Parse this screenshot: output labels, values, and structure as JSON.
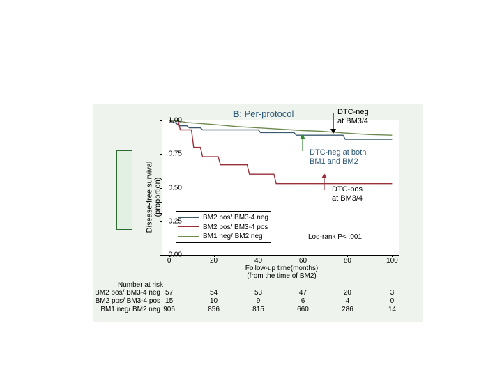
{
  "panel": {
    "background": "#eef4ed",
    "plot_background": "#ffffff"
  },
  "title": {
    "prefix": "B",
    "text": ": Per-protocol",
    "color": "#2c5878"
  },
  "yaxis": {
    "label_line1": "Disease-free survival",
    "label_line2": "(proportion)",
    "ticks": [
      {
        "v": 0.0,
        "label": "0.00"
      },
      {
        "v": 0.25,
        "label": "0.25"
      },
      {
        "v": 0.5,
        "label": "0.50"
      },
      {
        "v": 0.75,
        "label": "0.75"
      },
      {
        "v": 1.0,
        "label": "1.00"
      }
    ],
    "min": 0.0,
    "max": 1.0
  },
  "xaxis": {
    "label_line1": "Follow-up time(months)",
    "label_line2": "(from the time of BM2)",
    "ticks": [
      0,
      20,
      40,
      60,
      80,
      100
    ],
    "min": -3,
    "max": 103
  },
  "series": [
    {
      "name": "BM2 pos/ BM3-4 neg",
      "color": "#3b5a6e",
      "points": [
        [
          0,
          1.0
        ],
        [
          3,
          0.98
        ],
        [
          5,
          0.96
        ],
        [
          8,
          0.96
        ],
        [
          9,
          0.945
        ],
        [
          14,
          0.945
        ],
        [
          15,
          0.93
        ],
        [
          40,
          0.93
        ],
        [
          41,
          0.91
        ],
        [
          56,
          0.91
        ],
        [
          57,
          0.89
        ],
        [
          78,
          0.89
        ],
        [
          79,
          0.86
        ],
        [
          100,
          0.86
        ]
      ]
    },
    {
      "name": "BM2 pos/ BM3-4 pos",
      "color": "#9a2f3a",
      "points": [
        [
          0,
          1.0
        ],
        [
          4,
          1.0
        ],
        [
          5,
          0.93
        ],
        [
          10,
          0.93
        ],
        [
          11,
          0.8
        ],
        [
          14,
          0.8
        ],
        [
          15,
          0.73
        ],
        [
          22,
          0.73
        ],
        [
          23,
          0.67
        ],
        [
          35,
          0.67
        ],
        [
          36,
          0.6
        ],
        [
          47,
          0.6
        ],
        [
          48,
          0.53
        ],
        [
          100,
          0.53
        ]
      ]
    },
    {
      "name": "BM1 neg/ BM2 neg",
      "color": "#6c8a4f",
      "points": [
        [
          0,
          1.0
        ],
        [
          2,
          1.0
        ],
        [
          8,
          0.985
        ],
        [
          20,
          0.97
        ],
        [
          30,
          0.955
        ],
        [
          45,
          0.94
        ],
        [
          55,
          0.93
        ],
        [
          60,
          0.925
        ],
        [
          68,
          0.92
        ],
        [
          80,
          0.905
        ],
        [
          90,
          0.895
        ],
        [
          100,
          0.89
        ]
      ]
    }
  ],
  "annotations": {
    "top": {
      "text1": "DTC-neg",
      "text2": "at BM3/4",
      "color": "#000000",
      "arrow_color": "#000000"
    },
    "mid": {
      "text1": "DTC-neg at both",
      "text2": "BM1 and BM2",
      "color": "#2c5878",
      "arrow_color": "#2f8b2f"
    },
    "bot": {
      "text1": "DTC-pos",
      "text2": "at BM3/4",
      "color": "#000000",
      "arrow_color": "#9a2f3a"
    }
  },
  "legend": [
    {
      "label": "BM2 pos/ BM3-4 neg",
      "color": "#3b5a6e"
    },
    {
      "label": "BM2 pos/ BM3-4 pos",
      "color": "#9a2f3a"
    },
    {
      "label": "BM1 neg/ BM2 neg",
      "color": "#6c8a4f"
    }
  ],
  "logrank": "Log-rank P< .001",
  "risk": {
    "header": "Number at risk",
    "rows": [
      {
        "label": "BM2 pos/ BM3-4 neg",
        "vals": [
          57,
          54,
          53,
          47,
          20,
          3
        ]
      },
      {
        "label": "BM2 pos/ BM3-4 pos",
        "vals": [
          15,
          10,
          9,
          6,
          4,
          0
        ]
      },
      {
        "label": "BM1 neg/ BM2 neg",
        "vals": [
          906,
          856,
          815,
          660,
          286,
          14
        ]
      }
    ]
  }
}
